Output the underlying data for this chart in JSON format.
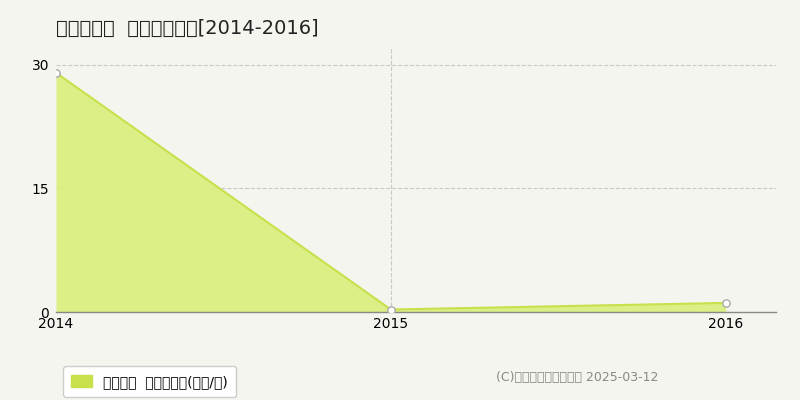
{
  "title": "磐田市敷地  住宅価格推移[2014-2016]",
  "x_values": [
    2014,
    2015,
    2016
  ],
  "y_values": [
    29.0,
    0.3,
    1.1
  ],
  "yticks": [
    0,
    15,
    30
  ],
  "xlim": [
    2014,
    2016.15
  ],
  "ylim": [
    0,
    32
  ],
  "line_color": "#c8e04b",
  "fill_color": "#d8ef7a",
  "fill_alpha": 0.9,
  "marker_color": "#ffffff",
  "marker_edge_color": "#aaaaaa",
  "grid_color": "#aaaaaa",
  "bg_color": "#f5f5f0",
  "legend_label": "住宅価格  平均坪単価(万円/坪)",
  "legend_color": "#c8e04b",
  "copyright_text": "(C)土地価格ドットコム 2025-03-12",
  "xticks": [
    2014,
    2015,
    2016
  ],
  "title_fontsize": 14,
  "axis_fontsize": 10,
  "legend_fontsize": 10,
  "copyright_fontsize": 9
}
